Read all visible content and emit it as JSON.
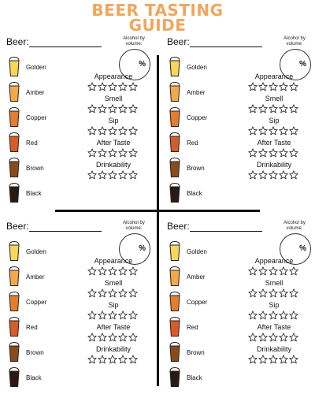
{
  "header": {
    "title_line1": "BEER TASTING",
    "title_line2": "GUIDE"
  },
  "colors": {
    "title": "#f0a65c",
    "ink": "#111111"
  },
  "cards": [
    {
      "beer_label": "Beer:",
      "alcohol_label": "Alcohol by volume:",
      "percent": "%",
      "beer_colors": [
        {
          "name": "Golden",
          "fill": "#f7d65a"
        },
        {
          "name": "Amber",
          "fill": "#f4a84a"
        },
        {
          "name": "Copper",
          "fill": "#e47d2c"
        },
        {
          "name": "Red",
          "fill": "#d85c28"
        },
        {
          "name": "Brown",
          "fill": "#8a4a1a"
        },
        {
          "name": "Black",
          "fill": "#2b1a12"
        }
      ],
      "criteria": [
        {
          "label": "Appearance",
          "rating": 0
        },
        {
          "label": "Smell",
          "rating": 0
        },
        {
          "label": "Sip",
          "rating": 0
        },
        {
          "label": "After Taste",
          "rating": 0
        },
        {
          "label": "Drinkability",
          "rating": 0
        }
      ]
    },
    {
      "beer_label": "Beer:",
      "alcohol_label": "Alcohol by volume:",
      "percent": "%",
      "beer_colors": [
        {
          "name": "Golden",
          "fill": "#f7d65a"
        },
        {
          "name": "Amber",
          "fill": "#f4a84a"
        },
        {
          "name": "Copper",
          "fill": "#e47d2c"
        },
        {
          "name": "Red",
          "fill": "#d85c28"
        },
        {
          "name": "Brown",
          "fill": "#8a4a1a"
        },
        {
          "name": "Black",
          "fill": "#2b1a12"
        }
      ],
      "criteria": [
        {
          "label": "Appearance",
          "rating": 0
        },
        {
          "label": "Smell",
          "rating": 0
        },
        {
          "label": "Sip",
          "rating": 0
        },
        {
          "label": "After Taste",
          "rating": 0
        },
        {
          "label": "Drinkability",
          "rating": 0
        }
      ]
    },
    {
      "beer_label": "Beer:",
      "alcohol_label": "Alcohol by volume:",
      "percent": "%",
      "beer_colors": [
        {
          "name": "Golden",
          "fill": "#f7d65a"
        },
        {
          "name": "Amber",
          "fill": "#f4a84a"
        },
        {
          "name": "Copper",
          "fill": "#e47d2c"
        },
        {
          "name": "Red",
          "fill": "#d85c28"
        },
        {
          "name": "Brown",
          "fill": "#8a4a1a"
        },
        {
          "name": "Black",
          "fill": "#2b1a12"
        }
      ],
      "criteria": [
        {
          "label": "Appearance",
          "rating": 0
        },
        {
          "label": "Smell",
          "rating": 0
        },
        {
          "label": "Sip",
          "rating": 0
        },
        {
          "label": "After Taste",
          "rating": 0
        },
        {
          "label": "Drinkability",
          "rating": 0
        }
      ]
    },
    {
      "beer_label": "Beer:",
      "alcohol_label": "Alcohol by volume:",
      "percent": "%",
      "beer_colors": [
        {
          "name": "Golden",
          "fill": "#f7d65a"
        },
        {
          "name": "Amber",
          "fill": "#f4a84a"
        },
        {
          "name": "Copper",
          "fill": "#e47d2c"
        },
        {
          "name": "Red",
          "fill": "#d85c28"
        },
        {
          "name": "Brown",
          "fill": "#8a4a1a"
        },
        {
          "name": "Black",
          "fill": "#2b1a12"
        }
      ],
      "criteria": [
        {
          "label": "Appearance",
          "rating": 0
        },
        {
          "label": "Smell",
          "rating": 0
        },
        {
          "label": "Sip",
          "rating": 0
        },
        {
          "label": "After Taste",
          "rating": 0
        },
        {
          "label": "Drinkability",
          "rating": 0
        }
      ]
    }
  ]
}
